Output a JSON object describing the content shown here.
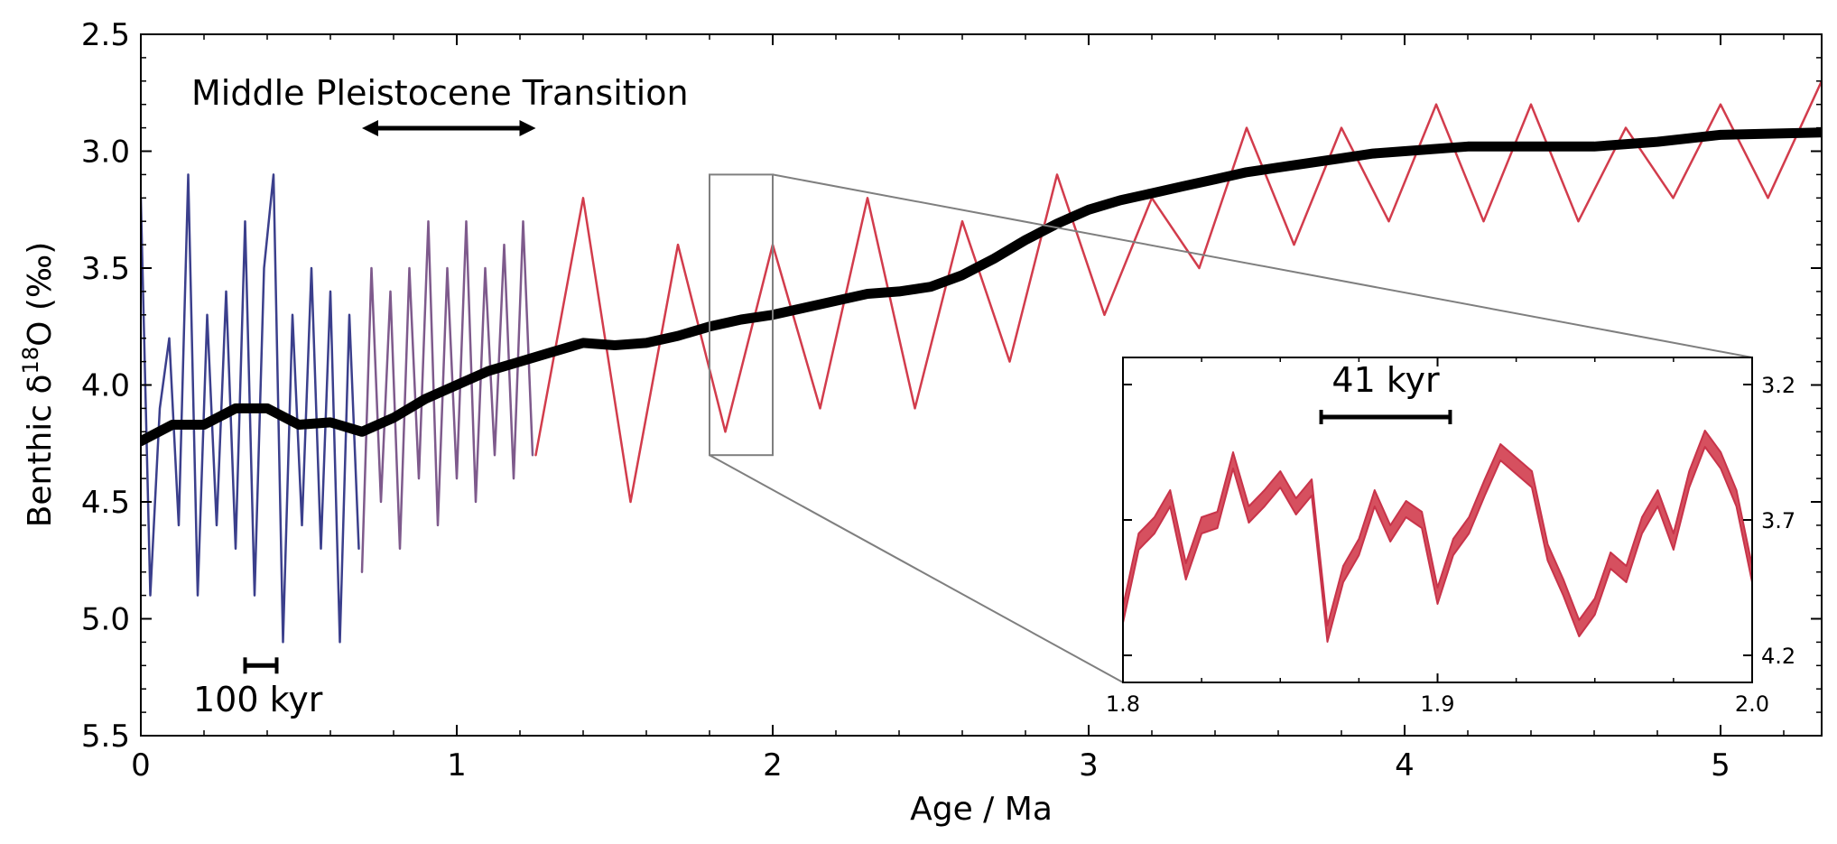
{
  "chart_data": {
    "type": "line",
    "title": "",
    "xlabel": "Age / Ma",
    "ylabel_prefix": "Benthic δ",
    "ylabel_sup": "18",
    "ylabel_suffix": "O (‰)",
    "xlim": [
      0,
      5.32
    ],
    "ylim": [
      2.5,
      5.5
    ],
    "y_inverted": true,
    "x_ticks": [
      "0",
      "1",
      "2",
      "3",
      "4",
      "5"
    ],
    "y_ticks": [
      "2.5",
      "3.0",
      "3.5",
      "4.0",
      "4.5",
      "5.0",
      "5.5"
    ],
    "grid": false,
    "legend": "none",
    "colors": {
      "recent": "#3b3f8c",
      "mpt": "#7e5a8c",
      "early": "#d23c4c",
      "trend": "#000000",
      "zoom_lines": "#7f7f7f"
    },
    "series": [
      {
        "segment": "0–0.7 Ma",
        "color": "#3b3f8c",
        "x": [
          0.0,
          0.03,
          0.06,
          0.09,
          0.12,
          0.15,
          0.18,
          0.21,
          0.24,
          0.27,
          0.3,
          0.33,
          0.36,
          0.39,
          0.42,
          0.45,
          0.48,
          0.51,
          0.54,
          0.57,
          0.6,
          0.63,
          0.66,
          0.69
        ],
        "y": [
          3.2,
          4.9,
          4.1,
          3.8,
          4.6,
          3.1,
          4.9,
          3.7,
          4.6,
          3.6,
          4.7,
          3.3,
          4.9,
          3.5,
          3.1,
          5.1,
          3.7,
          4.6,
          3.5,
          4.7,
          3.6,
          5.1,
          3.7,
          4.7
        ]
      },
      {
        "segment": "0.7–1.25 Ma",
        "color": "#7e5a8c",
        "x": [
          0.7,
          0.73,
          0.76,
          0.79,
          0.82,
          0.85,
          0.88,
          0.91,
          0.94,
          0.97,
          1.0,
          1.03,
          1.06,
          1.09,
          1.12,
          1.15,
          1.18,
          1.21,
          1.24
        ],
        "y": [
          4.8,
          3.5,
          4.5,
          3.6,
          4.7,
          3.5,
          4.4,
          3.3,
          4.6,
          3.5,
          4.4,
          3.3,
          4.5,
          3.5,
          4.3,
          3.4,
          4.4,
          3.3,
          4.3
        ]
      },
      {
        "segment": "1.25–5.32 Ma",
        "color": "#d23c4c",
        "x": [
          1.25,
          1.4,
          1.55,
          1.7,
          1.85,
          2.0,
          2.15,
          2.3,
          2.45,
          2.6,
          2.75,
          2.9,
          3.05,
          3.2,
          3.35,
          3.5,
          3.65,
          3.8,
          3.95,
          4.1,
          4.25,
          4.4,
          4.55,
          4.7,
          4.85,
          5.0,
          5.15,
          5.32
        ],
        "y": [
          4.3,
          3.2,
          4.5,
          3.4,
          4.2,
          3.4,
          4.1,
          3.2,
          4.1,
          3.3,
          3.9,
          3.1,
          3.7,
          3.2,
          3.5,
          2.9,
          3.4,
          2.9,
          3.3,
          2.8,
          3.3,
          2.8,
          3.3,
          2.9,
          3.2,
          2.8,
          3.2,
          2.7
        ]
      },
      {
        "name": "",
        "role": "trend",
        "color": "#000000",
        "x": [
          0.0,
          0.1,
          0.2,
          0.3,
          0.4,
          0.5,
          0.6,
          0.7,
          0.8,
          0.9,
          1.0,
          1.1,
          1.2,
          1.3,
          1.4,
          1.5,
          1.6,
          1.7,
          1.8,
          1.9,
          2.0,
          2.1,
          2.2,
          2.3,
          2.4,
          2.5,
          2.6,
          2.7,
          2.8,
          2.9,
          3.0,
          3.1,
          3.2,
          3.3,
          3.4,
          3.5,
          3.6,
          3.7,
          3.8,
          3.9,
          4.0,
          4.2,
          4.4,
          4.6,
          4.8,
          5.0,
          5.32
        ],
        "y": [
          4.24,
          4.17,
          4.17,
          4.1,
          4.1,
          4.17,
          4.16,
          4.2,
          4.14,
          4.06,
          4.0,
          3.94,
          3.9,
          3.86,
          3.82,
          3.83,
          3.82,
          3.79,
          3.75,
          3.72,
          3.7,
          3.67,
          3.64,
          3.61,
          3.6,
          3.58,
          3.53,
          3.46,
          3.38,
          3.31,
          3.25,
          3.21,
          3.18,
          3.15,
          3.12,
          3.09,
          3.07,
          3.05,
          3.03,
          3.01,
          3.0,
          2.98,
          2.98,
          2.98,
          2.96,
          2.93,
          2.92
        ]
      }
    ],
    "annotations": {
      "mpt_label": "Middle Pleistocene Transition",
      "mpt_range": [
        0.7,
        1.25
      ],
      "scale_100_label": "100 kyr",
      "scale_100_range": [
        0.33,
        0.43
      ],
      "scale_100_y": 5.2,
      "zoom_box": {
        "xlim": [
          1.8,
          2.0
        ],
        "ylim": [
          3.1,
          4.3
        ]
      }
    },
    "inset": {
      "type": "area",
      "xlim": [
        1.8,
        2.0
      ],
      "ylim": [
        3.1,
        4.3
      ],
      "y_inverted": true,
      "x_ticks": [
        "1.8",
        "1.9",
        "2.0"
      ],
      "y_ticks": [
        "3.2",
        "3.7",
        "4.2"
      ],
      "scale_label": "41 kyr",
      "scale_range": [
        1.863,
        1.904
      ],
      "scale_y": 3.32,
      "band_width": 0.06,
      "color": "#d6505f",
      "x": [
        1.8,
        1.805,
        1.81,
        1.815,
        1.82,
        1.825,
        1.83,
        1.835,
        1.84,
        1.845,
        1.85,
        1.855,
        1.86,
        1.865,
        1.87,
        1.875,
        1.88,
        1.885,
        1.89,
        1.895,
        1.9,
        1.905,
        1.91,
        1.915,
        1.92,
        1.925,
        1.93,
        1.935,
        1.94,
        1.945,
        1.95,
        1.955,
        1.96,
        1.965,
        1.97,
        1.975,
        1.98,
        1.985,
        1.99,
        1.995,
        2.0
      ],
      "y": [
        4.05,
        3.78,
        3.72,
        3.62,
        3.89,
        3.72,
        3.7,
        3.48,
        3.68,
        3.62,
        3.55,
        3.65,
        3.58,
        4.12,
        3.9,
        3.8,
        3.62,
        3.75,
        3.66,
        3.7,
        3.98,
        3.8,
        3.72,
        3.58,
        3.45,
        3.5,
        3.55,
        3.82,
        3.95,
        4.1,
        4.02,
        3.85,
        3.9,
        3.72,
        3.62,
        3.78,
        3.55,
        3.4,
        3.48,
        3.62,
        3.9
      ]
    }
  }
}
